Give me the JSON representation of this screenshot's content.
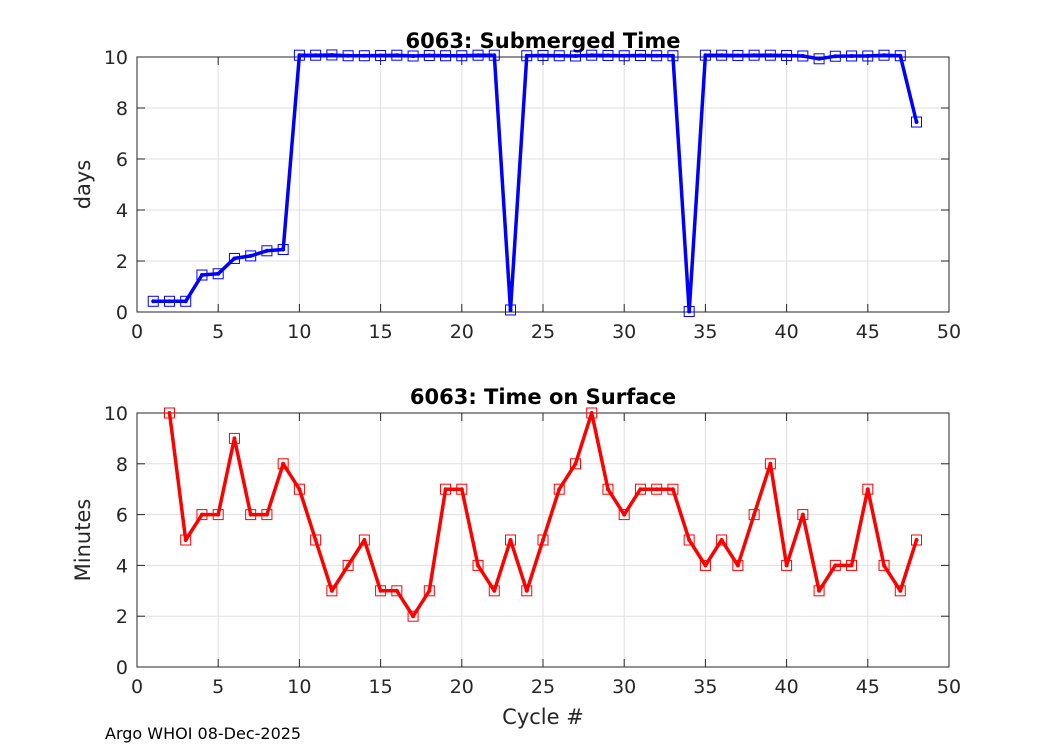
{
  "footer": "Argo WHOI 08-Dec-2025",
  "chart_data": [
    {
      "type": "line",
      "title": "6063: Submerged Time",
      "xlabel": "",
      "ylabel": "days",
      "xlim": [
        0,
        50
      ],
      "ylim": [
        0,
        10
      ],
      "xticks": [
        0,
        5,
        10,
        15,
        20,
        25,
        30,
        35,
        40,
        45,
        50
      ],
      "yticks": [
        0,
        2,
        4,
        6,
        8,
        10
      ],
      "grid": true,
      "color": "#0000ff",
      "marker": "square",
      "series": [
        {
          "name": "Submerged Time",
          "x": [
            1,
            2,
            3,
            4,
            5,
            6,
            7,
            8,
            9,
            10,
            11,
            12,
            13,
            14,
            15,
            16,
            17,
            18,
            19,
            20,
            21,
            22,
            23,
            24,
            25,
            26,
            27,
            28,
            29,
            30,
            31,
            32,
            33,
            34,
            35,
            36,
            37,
            38,
            39,
            40,
            41,
            42,
            43,
            44,
            45,
            46,
            47,
            48
          ],
          "values": [
            0.42,
            0.42,
            0.42,
            1.45,
            1.5,
            2.1,
            2.2,
            2.4,
            2.45,
            10.07,
            10.07,
            10.08,
            10.05,
            10.05,
            10.06,
            10.07,
            10.04,
            10.06,
            10.05,
            10.05,
            10.07,
            10.07,
            0.08,
            10.05,
            10.06,
            10.05,
            10.04,
            10.07,
            10.06,
            10.05,
            10.06,
            10.05,
            10.05,
            0.02,
            10.07,
            10.07,
            10.06,
            10.07,
            10.07,
            10.06,
            10.04,
            9.93,
            10.03,
            10.04,
            10.04,
            10.07,
            10.05,
            7.45
          ]
        }
      ]
    },
    {
      "type": "line",
      "title": "6063: Time on Surface",
      "xlabel": "Cycle #",
      "ylabel": "Minutes",
      "xlim": [
        0,
        50
      ],
      "ylim": [
        0,
        10
      ],
      "xticks": [
        0,
        5,
        10,
        15,
        20,
        25,
        30,
        35,
        40,
        45,
        50
      ],
      "yticks": [
        0,
        2,
        4,
        6,
        8,
        10
      ],
      "grid": true,
      "color": "#ff0000",
      "marker": "square",
      "series": [
        {
          "name": "Time on Surface",
          "x": [
            2,
            3,
            4,
            5,
            6,
            7,
            8,
            9,
            10,
            11,
            12,
            13,
            14,
            15,
            16,
            17,
            18,
            19,
            20,
            21,
            22,
            23,
            24,
            25,
            26,
            27,
            28,
            29,
            30,
            31,
            32,
            33,
            34,
            35,
            36,
            37,
            38,
            39,
            40,
            41,
            42,
            43,
            44,
            45,
            46,
            47,
            48
          ],
          "values": [
            10,
            5,
            6,
            6,
            9,
            6,
            6,
            8,
            7,
            5,
            3,
            4,
            5,
            3,
            3,
            2,
            3,
            7,
            7,
            4,
            3,
            5,
            3,
            5,
            7,
            8,
            10,
            7,
            6,
            7,
            7,
            7,
            5,
            4,
            5,
            4,
            6,
            8,
            4,
            6,
            3,
            4,
            4,
            7,
            4,
            3,
            5
          ]
        }
      ]
    }
  ]
}
